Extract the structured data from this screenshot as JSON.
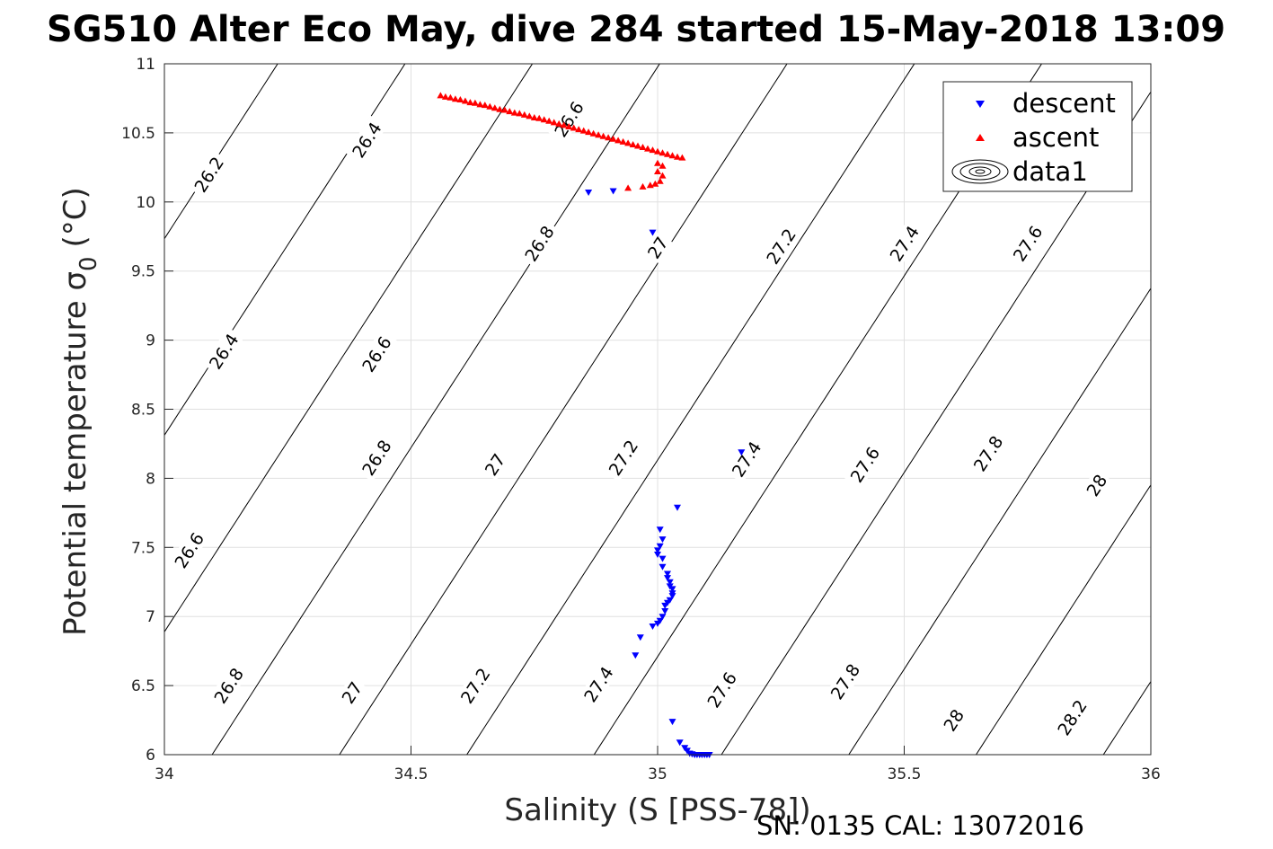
{
  "title": "SG510 Alter Eco May, dive 284 started 15-May-2018 13:09",
  "footer_text": "SN: 0135  CAL: 13072016",
  "chart_data": {
    "type": "scatter",
    "xlabel": "Salinity (S [PSS-78])",
    "ylabel_main": "Potential temperature σ",
    "ylabel_sub": "0",
    "ylabel_unit": "(°C)",
    "xlim": [
      34,
      36
    ],
    "ylim": [
      6,
      11
    ],
    "x_ticks": [
      34,
      34.5,
      35,
      35.5,
      36
    ],
    "x_tick_labels": [
      "34",
      "34.5",
      "35",
      "35.5",
      "36"
    ],
    "y_ticks": [
      6,
      6.5,
      7,
      7.5,
      8,
      8.5,
      9,
      9.5,
      10,
      10.5,
      11
    ],
    "y_tick_labels": [
      "6",
      "6.5",
      "7",
      "7.5",
      "8",
      "8.5",
      "9",
      "9.5",
      "10",
      "10.5",
      "11"
    ],
    "grid": true,
    "legend_position": "top-right",
    "series": [
      {
        "name": "descent",
        "marker": "triangle-down",
        "color": "#0000ff",
        "points": [
          [
            34.86,
            10.07
          ],
          [
            34.91,
            10.08
          ],
          [
            34.99,
            9.78
          ],
          [
            35.17,
            8.19
          ],
          [
            35.04,
            7.79
          ],
          [
            35.005,
            7.63
          ],
          [
            35.01,
            7.56
          ],
          [
            35.005,
            7.51
          ],
          [
            35.0,
            7.48
          ],
          [
            35.0,
            7.45
          ],
          [
            35.01,
            7.42
          ],
          [
            35.01,
            7.36
          ],
          [
            35.02,
            7.31
          ],
          [
            35.02,
            7.28
          ],
          [
            35.025,
            7.25
          ],
          [
            35.025,
            7.22
          ],
          [
            35.03,
            7.2
          ],
          [
            35.03,
            7.17
          ],
          [
            35.03,
            7.15
          ],
          [
            35.025,
            7.12
          ],
          [
            35.02,
            7.1
          ],
          [
            35.015,
            7.08
          ],
          [
            35.015,
            7.04
          ],
          [
            35.01,
            7.0
          ],
          [
            35.005,
            6.97
          ],
          [
            35.0,
            6.95
          ],
          [
            34.99,
            6.93
          ],
          [
            34.965,
            6.85
          ],
          [
            34.955,
            6.72
          ],
          [
            35.03,
            6.24
          ],
          [
            35.045,
            6.09
          ],
          [
            35.055,
            6.05
          ],
          [
            35.06,
            6.03
          ],
          [
            35.065,
            6.01
          ],
          [
            35.07,
            6.005
          ],
          [
            35.075,
            6.0
          ],
          [
            35.08,
            6.0
          ],
          [
            35.085,
            6.0
          ],
          [
            35.09,
            6.0
          ],
          [
            35.095,
            6.0
          ],
          [
            35.1,
            6.0
          ],
          [
            35.105,
            6.0
          ]
        ]
      },
      {
        "name": "ascent",
        "marker": "triangle-up",
        "color": "#ff0000",
        "points": [
          [
            34.56,
            10.77
          ],
          [
            34.57,
            10.76
          ],
          [
            34.58,
            10.755
          ],
          [
            34.59,
            10.745
          ],
          [
            34.6,
            10.74
          ],
          [
            34.61,
            10.73
          ],
          [
            34.62,
            10.72
          ],
          [
            34.63,
            10.715
          ],
          [
            34.64,
            10.705
          ],
          [
            34.65,
            10.7
          ],
          [
            34.66,
            10.69
          ],
          [
            34.67,
            10.68
          ],
          [
            34.68,
            10.67
          ],
          [
            34.69,
            10.665
          ],
          [
            34.7,
            10.655
          ],
          [
            34.71,
            10.645
          ],
          [
            34.72,
            10.64
          ],
          [
            34.73,
            10.63
          ],
          [
            34.74,
            10.62
          ],
          [
            34.75,
            10.61
          ],
          [
            34.76,
            10.605
          ],
          [
            34.77,
            10.595
          ],
          [
            34.78,
            10.585
          ],
          [
            34.79,
            10.575
          ],
          [
            34.8,
            10.565
          ],
          [
            34.81,
            10.555
          ],
          [
            34.82,
            10.545
          ],
          [
            34.83,
            10.535
          ],
          [
            34.84,
            10.525
          ],
          [
            34.85,
            10.515
          ],
          [
            34.86,
            10.505
          ],
          [
            34.87,
            10.495
          ],
          [
            34.88,
            10.485
          ],
          [
            34.89,
            10.475
          ],
          [
            34.9,
            10.465
          ],
          [
            34.91,
            10.455
          ],
          [
            34.92,
            10.445
          ],
          [
            34.93,
            10.435
          ],
          [
            34.94,
            10.425
          ],
          [
            34.95,
            10.415
          ],
          [
            34.96,
            10.405
          ],
          [
            34.97,
            10.395
          ],
          [
            34.98,
            10.385
          ],
          [
            34.99,
            10.375
          ],
          [
            35.0,
            10.365
          ],
          [
            35.01,
            10.355
          ],
          [
            35.02,
            10.345
          ],
          [
            35.03,
            10.335
          ],
          [
            35.04,
            10.325
          ],
          [
            35.05,
            10.32
          ],
          [
            35.0,
            10.28
          ],
          [
            35.01,
            10.26
          ],
          [
            35.0,
            10.22
          ],
          [
            35.01,
            10.19
          ],
          [
            35.005,
            10.15
          ],
          [
            34.995,
            10.13
          ],
          [
            34.985,
            10.12
          ],
          [
            34.97,
            10.11
          ],
          [
            34.94,
            10.1
          ]
        ]
      }
    ],
    "contours": {
      "name": "data1",
      "labels": [
        {
          "text": "26.2",
          "s": 34.09,
          "t": 10.2
        },
        {
          "text": "26.4",
          "s": 34.41,
          "t": 10.45
        },
        {
          "text": "26.6",
          "s": 34.82,
          "t": 10.6
        },
        {
          "text": "26.4",
          "s": 34.12,
          "t": 8.92
        },
        {
          "text": "26.6",
          "s": 34.43,
          "t": 8.9
        },
        {
          "text": "26.8",
          "s": 34.76,
          "t": 9.7
        },
        {
          "text": "27",
          "s": 35.0,
          "t": 9.67
        },
        {
          "text": "27.2",
          "s": 35.25,
          "t": 9.68
        },
        {
          "text": "27.4",
          "s": 35.5,
          "t": 9.7
        },
        {
          "text": "27.6",
          "s": 35.75,
          "t": 9.7
        },
        {
          "text": "26.6",
          "s": 34.05,
          "t": 7.48
        },
        {
          "text": "26.8",
          "s": 34.43,
          "t": 8.15
        },
        {
          "text": "27",
          "s": 34.67,
          "t": 8.1
        },
        {
          "text": "27.2",
          "s": 34.93,
          "t": 8.15
        },
        {
          "text": "27.4",
          "s": 35.18,
          "t": 8.14
        },
        {
          "text": "27.6",
          "s": 35.42,
          "t": 8.1
        },
        {
          "text": "27.8",
          "s": 35.67,
          "t": 8.18
        },
        {
          "text": "28",
          "s": 35.89,
          "t": 7.95
        },
        {
          "text": "26.8",
          "s": 34.13,
          "t": 6.5
        },
        {
          "text": "27",
          "s": 34.38,
          "t": 6.45
        },
        {
          "text": "27.2",
          "s": 34.63,
          "t": 6.5
        },
        {
          "text": "27.4",
          "s": 34.88,
          "t": 6.51
        },
        {
          "text": "27.6",
          "s": 35.13,
          "t": 6.47
        },
        {
          "text": "27.8",
          "s": 35.38,
          "t": 6.53
        },
        {
          "text": "28",
          "s": 35.6,
          "t": 6.25
        },
        {
          "text": "28.2",
          "s": 35.84,
          "t": 6.27
        }
      ]
    },
    "colors": {
      "descent": "#0000ff",
      "ascent": "#ff0000",
      "contour": "#000000",
      "grid": "#e0e0e0",
      "axis": "#262626"
    }
  }
}
